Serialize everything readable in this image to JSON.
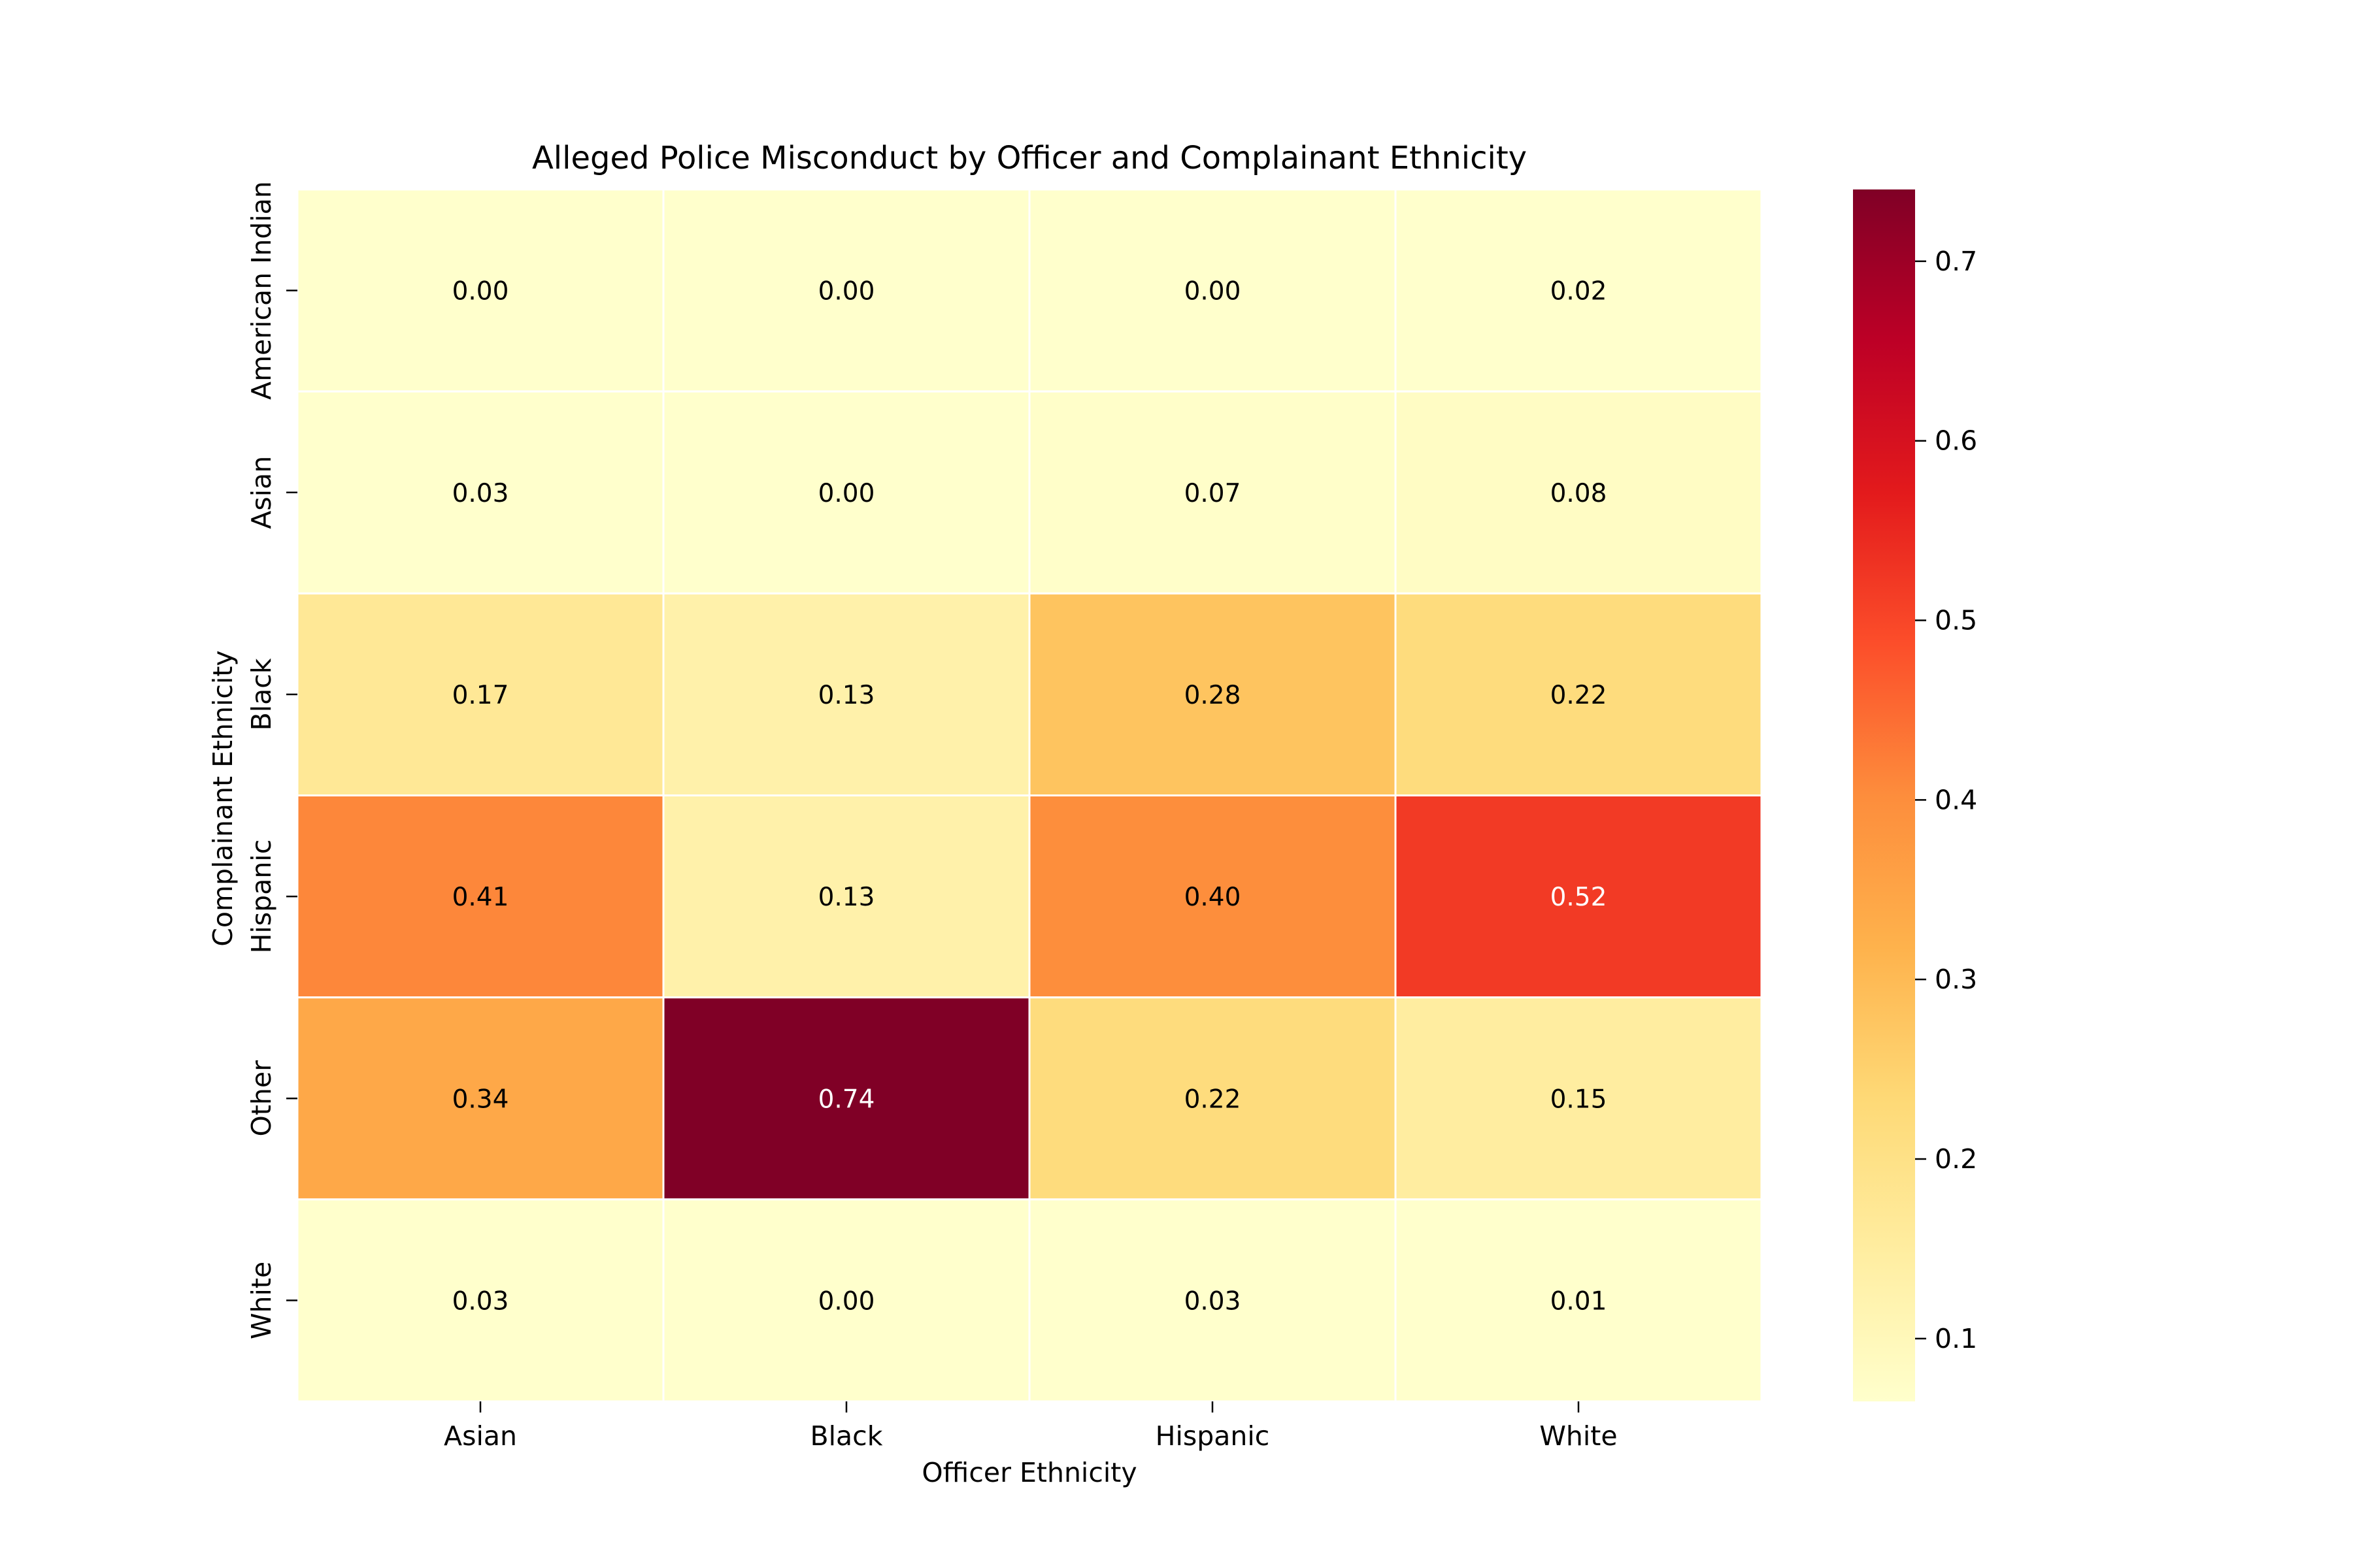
{
  "chart_data": {
    "type": "heatmap",
    "title": "Alleged Police Misconduct by Officer and Complainant Ethnicity",
    "xlabel": "Officer Ethnicity",
    "ylabel": "Complainant Ethnicity",
    "x_categories": [
      "Asian",
      "Black",
      "Hispanic",
      "White"
    ],
    "y_categories": [
      "American Indian",
      "Asian",
      "Black",
      "Hispanic",
      "Other",
      "White"
    ],
    "values": [
      [
        0.0,
        0.0,
        0.0,
        0.02
      ],
      [
        0.03,
        0.0,
        0.07,
        0.08
      ],
      [
        0.17,
        0.13,
        0.28,
        0.22
      ],
      [
        0.41,
        0.13,
        0.4,
        0.52
      ],
      [
        0.34,
        0.74,
        0.22,
        0.15
      ],
      [
        0.03,
        0.0,
        0.03,
        0.01
      ]
    ],
    "value_format": "0.00",
    "colormap": "YlOrRd",
    "colorbar": {
      "ticks": [
        "0.1",
        "0.2",
        "0.3",
        "0.4",
        "0.5",
        "0.6",
        "0.7"
      ],
      "range": [
        0.065,
        0.74
      ]
    },
    "colors": [
      "#ffffcc",
      "#ffeda0",
      "#fed976",
      "#feb24c",
      "#fd8d3c",
      "#fc4e2a",
      "#e31a1c",
      "#bd0026",
      "#800026"
    ]
  }
}
